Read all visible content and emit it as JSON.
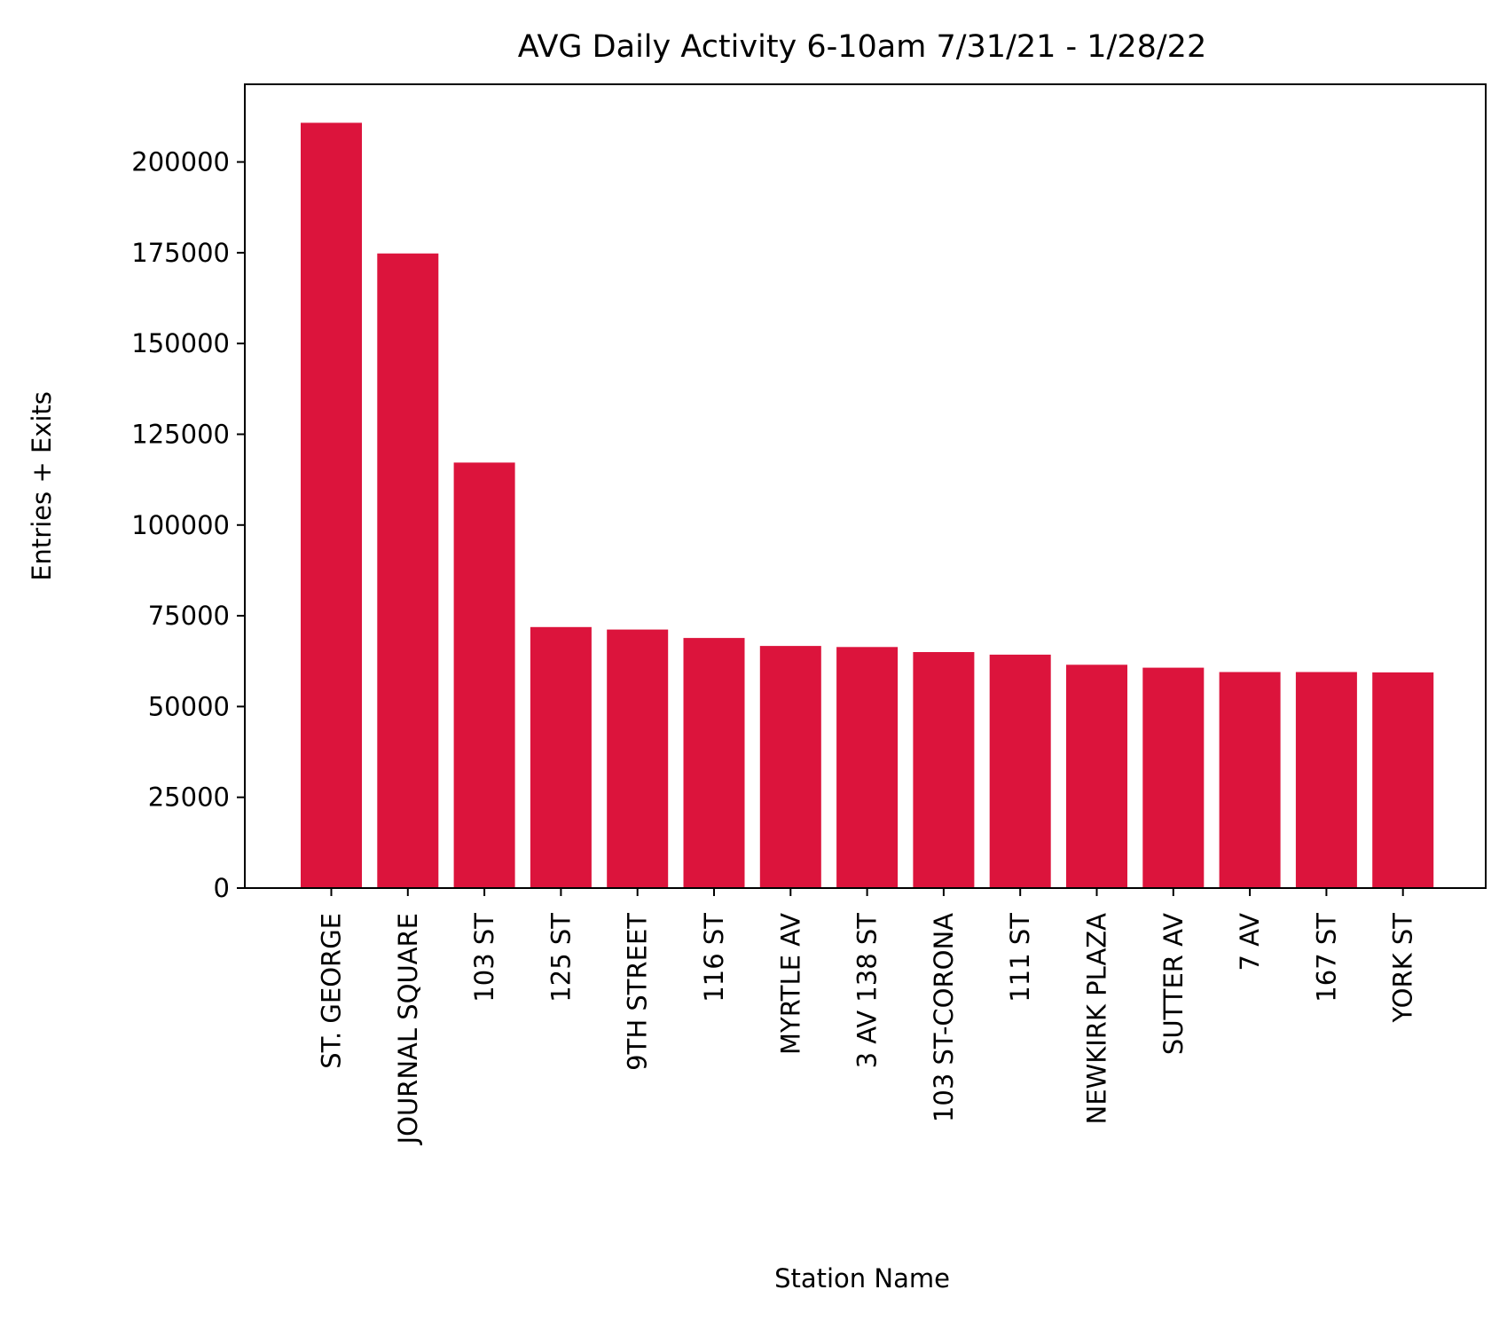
{
  "chart_data": {
    "type": "bar",
    "title": "AVG Daily Activity 6-10am 7/31/21 - 1/28/22",
    "xlabel": "Station Name",
    "ylabel": "Entries + Exits",
    "categories": [
      "ST. GEORGE",
      "JOURNAL SQUARE",
      "103 ST",
      "125 ST",
      "9TH STREET",
      "116 ST",
      "MYRTLE AV",
      "3 AV 138 ST",
      "103 ST-CORONA",
      "111 ST",
      "NEWKIRK PLAZA",
      "SUTTER AV",
      "7 AV",
      "167 ST",
      "YORK ST"
    ],
    "values": [
      210800,
      174800,
      117200,
      71900,
      71200,
      68900,
      66700,
      66400,
      65000,
      64300,
      61500,
      60700,
      59500,
      59500,
      59400
    ],
    "yticks": [
      0,
      25000,
      50000,
      75000,
      100000,
      125000,
      150000,
      175000,
      200000
    ],
    "ylim": [
      0,
      221400
    ],
    "bar_color": "#DC143C",
    "grid": false,
    "legend": null
  }
}
